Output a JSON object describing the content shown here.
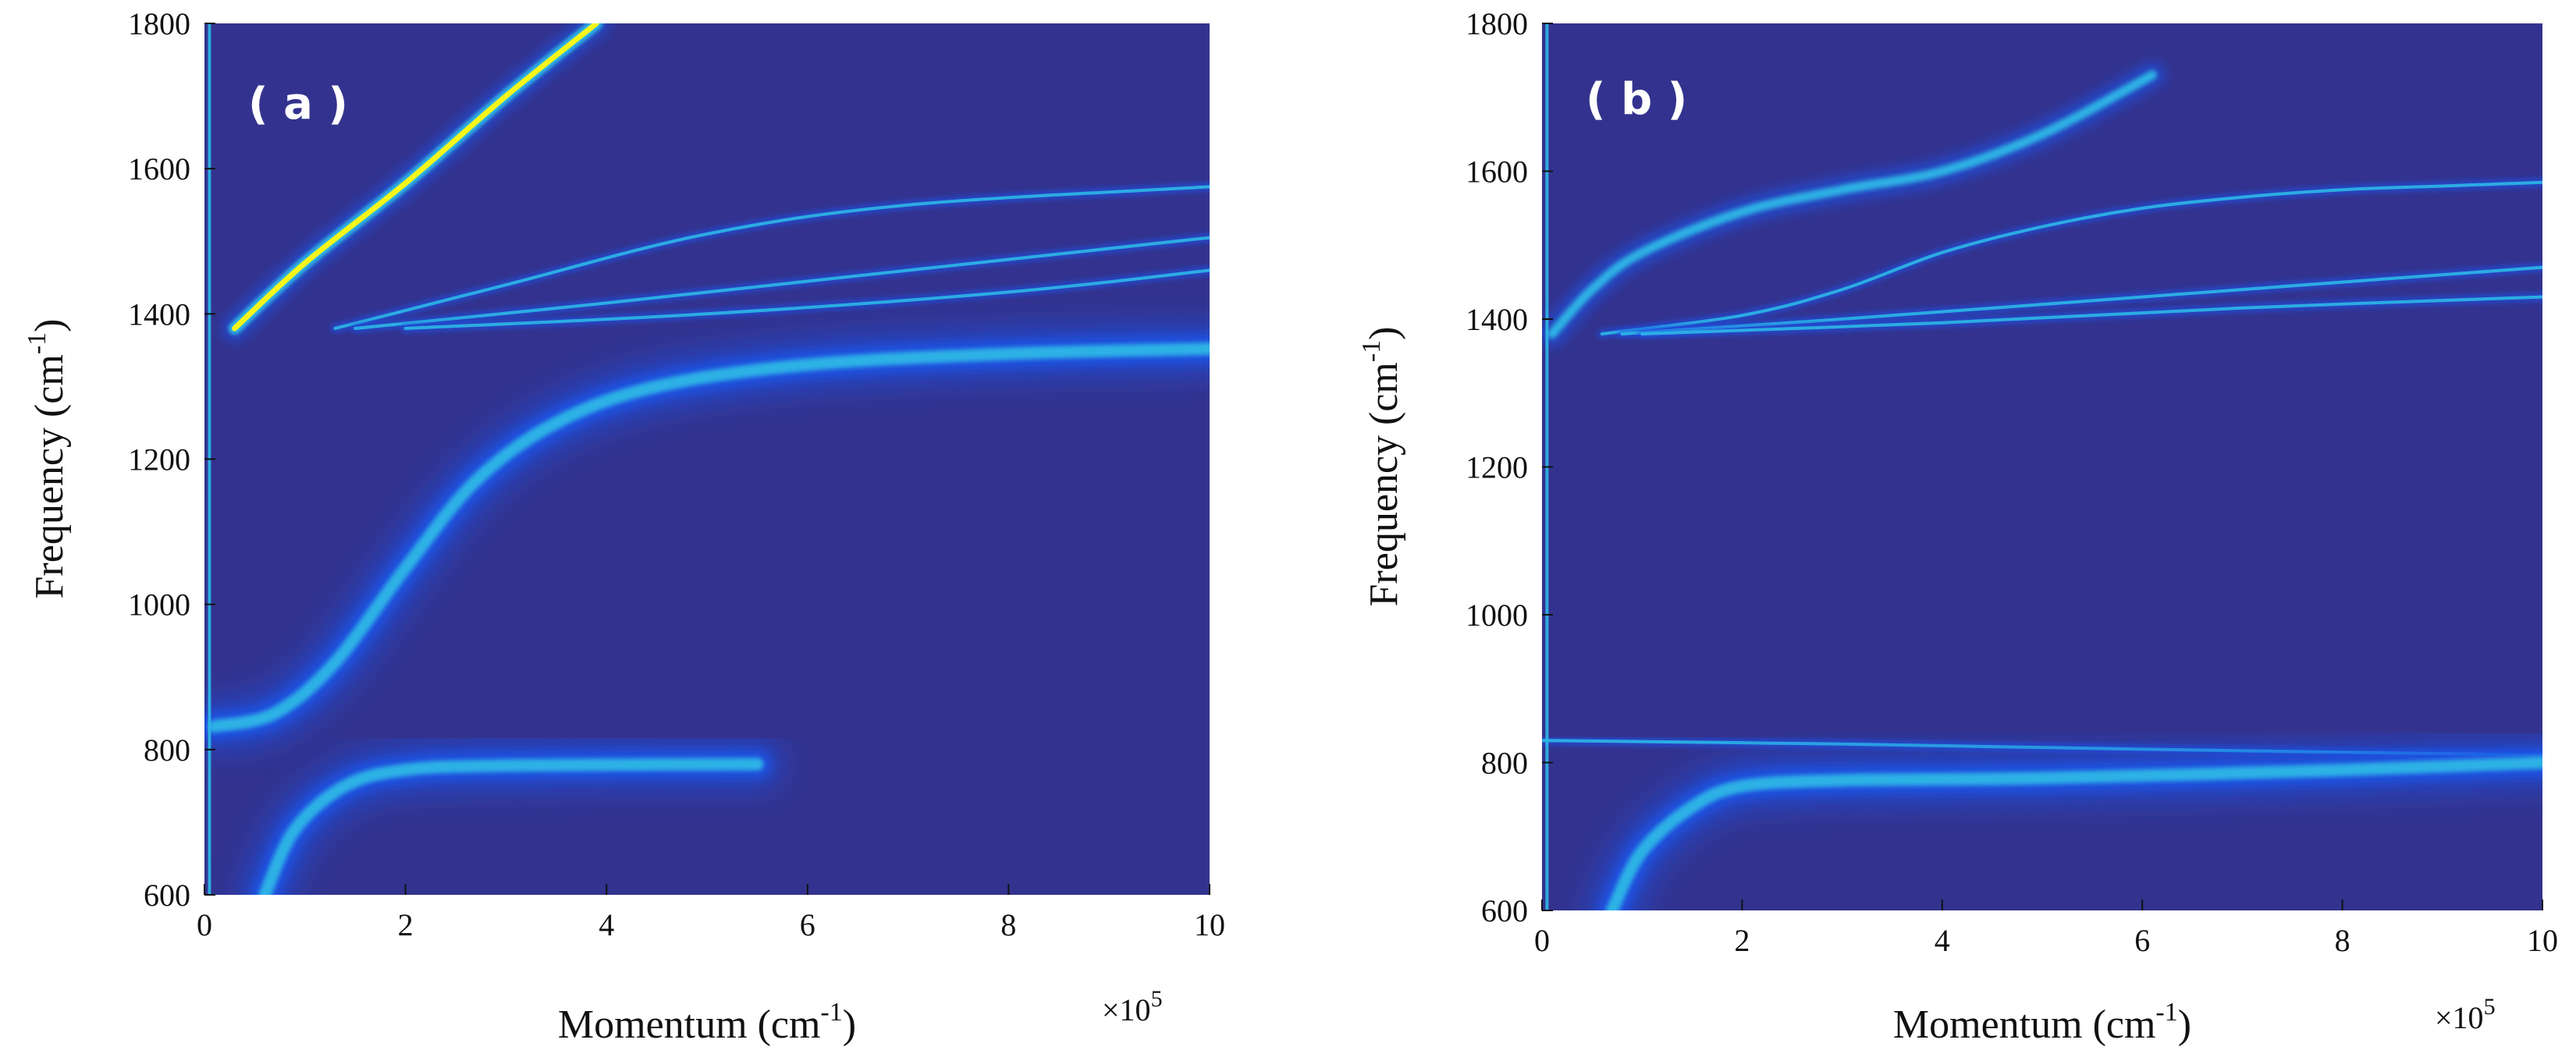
{
  "colors": {
    "background": "#33338f",
    "low": "#1f52e6",
    "mid": "#2db7e6",
    "high": "#f7f51a",
    "axis": "#111111"
  },
  "chart_data": [
    {
      "type": "heatmap",
      "panel_label": "( a )",
      "xlabel_text": "Momentum (cm",
      "xlabel_sup": "-1",
      "xlabel_close": ")",
      "ylabel_text": "Frequency (cm",
      "ylabel_sup": "-1",
      "ylabel_close": ")",
      "x_multiplier_text": "×10",
      "x_multiplier_exp": "5",
      "xlim": [
        0,
        10
      ],
      "ylim": [
        600,
        1800
      ],
      "x_ticks": [
        0,
        2,
        4,
        6,
        8,
        10
      ],
      "y_ticks": [
        600,
        800,
        1000,
        1200,
        1400,
        1600,
        1800
      ],
      "grid": false,
      "series": [
        {
          "x": [
            0.3,
            1,
            2,
            3,
            3.9
          ],
          "y": [
            1380,
            1470,
            1580,
            1700,
            1800
          ],
          "intensity": "high",
          "width": "medium"
        },
        {
          "x": [
            1.3,
            3,
            5,
            7,
            10
          ],
          "y": [
            1380,
            1440,
            1510,
            1550,
            1575
          ],
          "intensity": "mid",
          "width": "thin"
        },
        {
          "x": [
            1.5,
            4,
            7,
            10
          ],
          "y": [
            1380,
            1415,
            1460,
            1505
          ],
          "intensity": "low",
          "width": "thin"
        },
        {
          "x": [
            2,
            5,
            8,
            10
          ],
          "y": [
            1380,
            1400,
            1430,
            1460
          ],
          "intensity": "low",
          "width": "thin"
        },
        {
          "x": [
            0.1,
            0.7,
            1.3,
            2,
            2.7,
            3.5,
            4.5,
            6,
            8,
            10
          ],
          "y": [
            832,
            850,
            920,
            1050,
            1170,
            1250,
            1300,
            1330,
            1345,
            1352
          ],
          "intensity": "mid",
          "width": "broad"
        },
        {
          "x": [
            0.6,
            0.9,
            1.4,
            2,
            3,
            5.5
          ],
          "y": [
            600,
            690,
            750,
            772,
            778,
            780
          ],
          "intensity": "mid",
          "width": "broad"
        },
        {
          "x": [
            0.05,
            0.05
          ],
          "y": [
            600,
            1800
          ],
          "intensity": "low",
          "width": "thin"
        }
      ]
    },
    {
      "type": "heatmap",
      "panel_label": "( b )",
      "xlabel_text": "Momentum (cm",
      "xlabel_sup": "-1",
      "xlabel_close": ")",
      "ylabel_text": "Frequency (cm",
      "ylabel_sup": "-1",
      "ylabel_close": ")",
      "x_multiplier_text": "×10",
      "x_multiplier_exp": "5",
      "xlim": [
        0,
        10
      ],
      "ylim": [
        600,
        1800
      ],
      "x_ticks": [
        0,
        2,
        4,
        6,
        8,
        10
      ],
      "y_ticks": [
        600,
        800,
        1000,
        1200,
        1400,
        1600,
        1800
      ],
      "grid": false,
      "series": [
        {
          "x": [
            0.1,
            0.5,
            1,
            2,
            3,
            4,
            5,
            6.1
          ],
          "y": [
            1380,
            1440,
            1490,
            1545,
            1575,
            1600,
            1650,
            1730
          ],
          "intensity": "mid",
          "width": "medium"
        },
        {
          "x": [
            0.6,
            2,
            3,
            4,
            5,
            6,
            7,
            8,
            9,
            10
          ],
          "y": [
            1380,
            1405,
            1440,
            1490,
            1525,
            1550,
            1565,
            1575,
            1580,
            1585
          ],
          "intensity": "mid",
          "width": "thin"
        },
        {
          "x": [
            0.8,
            3,
            6,
            8,
            10
          ],
          "y": [
            1380,
            1400,
            1430,
            1450,
            1470
          ],
          "intensity": "low",
          "width": "thin"
        },
        {
          "x": [
            1,
            4,
            7,
            10
          ],
          "y": [
            1380,
            1395,
            1415,
            1430
          ],
          "intensity": "low",
          "width": "thin"
        },
        {
          "x": [
            0,
            3,
            6,
            10
          ],
          "y": [
            830,
            825,
            818,
            810
          ],
          "intensity": "low",
          "width": "thin"
        },
        {
          "x": [
            0.7,
            1,
            1.5,
            2,
            3,
            5,
            8,
            10
          ],
          "y": [
            600,
            680,
            740,
            768,
            776,
            779,
            790,
            800
          ],
          "intensity": "low",
          "width": "broad"
        },
        {
          "x": [
            0.05,
            0.05
          ],
          "y": [
            600,
            1800
          ],
          "intensity": "low",
          "width": "thin"
        }
      ]
    }
  ]
}
